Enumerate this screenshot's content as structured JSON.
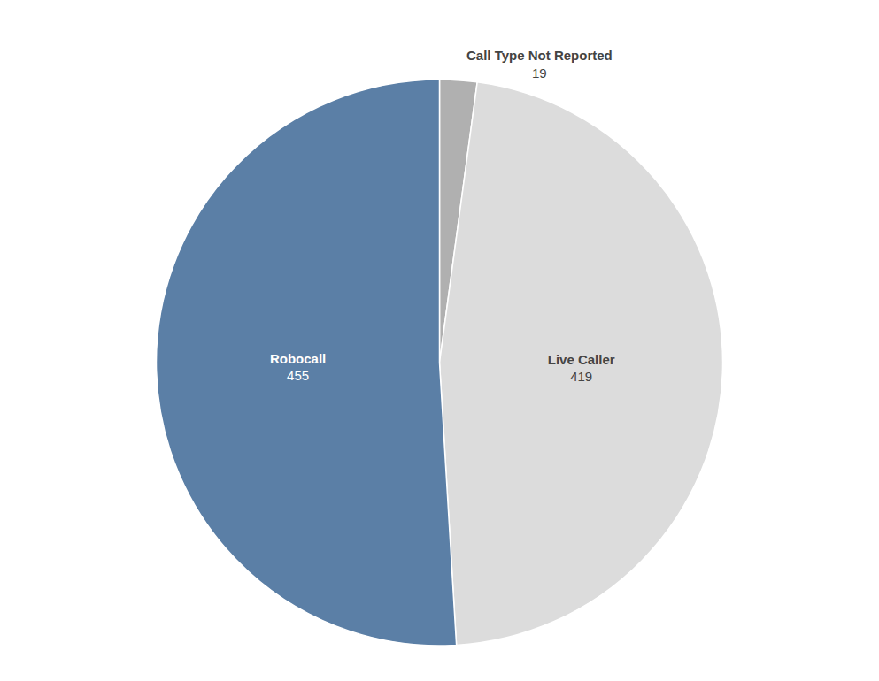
{
  "chart_data": {
    "type": "pie",
    "categories": [
      "Call Type Not Reported",
      "Live Caller",
      "Robocall"
    ],
    "values": [
      19,
      419,
      455
    ],
    "colors": [
      "#b0b0b0",
      "#dcdcdc",
      "#5b7fa6"
    ],
    "data_labels": true
  }
}
